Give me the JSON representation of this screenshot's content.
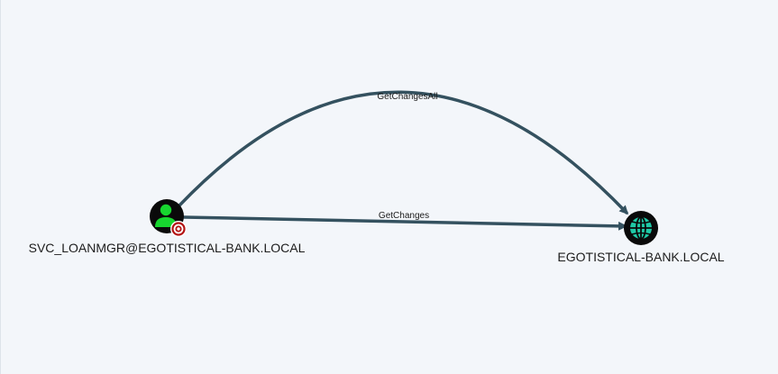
{
  "graph": {
    "nodes": [
      {
        "id": "user",
        "label": "SVC_LOANMGR@EGOTISTICAL-BANK.LOCAL",
        "icon": "user-icon",
        "badge": "target-icon",
        "icon_color": "#17d62f",
        "badge_color": "#b31313"
      },
      {
        "id": "domain",
        "label": "EGOTISTICAL-BANK.LOCAL",
        "icon": "globe-icon",
        "icon_color": "#1fc9a6"
      }
    ],
    "edges": [
      {
        "from": "user",
        "to": "domain",
        "label": "GetChangesAll"
      },
      {
        "from": "user",
        "to": "domain",
        "label": "GetChanges"
      }
    ],
    "edge_color": "#34515f"
  }
}
